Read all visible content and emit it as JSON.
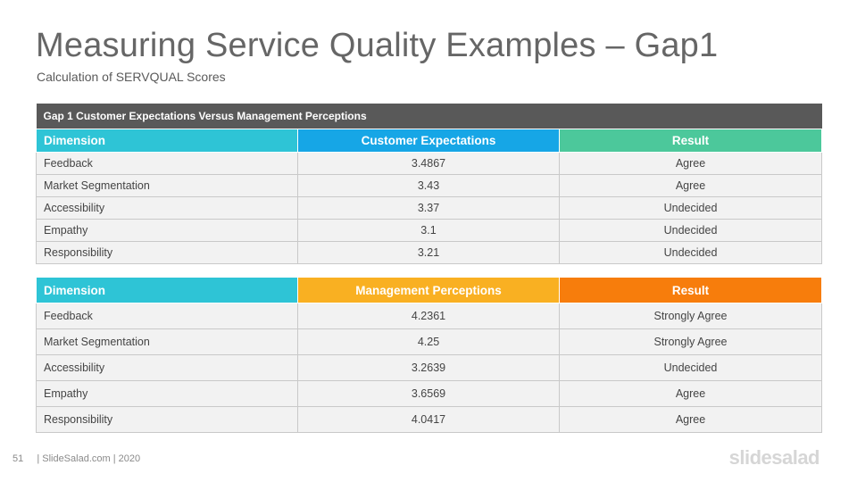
{
  "slide": {
    "title": "Measuring Service Quality Examples – Gap1",
    "subtitle": "Calculation of SERVQUAL Scores"
  },
  "table1": {
    "caption": "Gap 1 Customer Expectations Versus Management  Perceptions",
    "headers": [
      "Dimension",
      "Customer Expectations",
      "Result"
    ],
    "rows": [
      [
        "Feedback",
        "3.4867",
        "Agree"
      ],
      [
        "Market Segmentation",
        "3.43",
        "Agree"
      ],
      [
        "Accessibility",
        "3.37",
        "Undecided"
      ],
      [
        "Empathy",
        "3.1",
        "Undecided"
      ],
      [
        "Responsibility",
        "3.21",
        "Undecided"
      ]
    ]
  },
  "table2": {
    "headers": [
      "Dimension",
      "Management Perceptions",
      "Result"
    ],
    "rows": [
      [
        "Feedback",
        "4.2361",
        "Strongly  Agree"
      ],
      [
        "Market Segmentation",
        "4.25",
        "Strongly  Agree"
      ],
      [
        "Accessibility",
        "3.2639",
        "Undecided"
      ],
      [
        "Empathy",
        "3.6569",
        "Agree"
      ],
      [
        "Responsibility",
        "4.0417",
        "Agree"
      ]
    ]
  },
  "footer": {
    "page_number": "51",
    "text": "| SlideSalad.com | 2020"
  },
  "logo": {
    "text": "slidesalad"
  },
  "colors": {
    "caption_bg": "#595959",
    "dimension_header": "#2ec4d6",
    "expectations_header": "#16a6e6",
    "result1_header": "#4cc89b",
    "perceptions_header": "#f9b022",
    "result2_header": "#f77d0c"
  }
}
